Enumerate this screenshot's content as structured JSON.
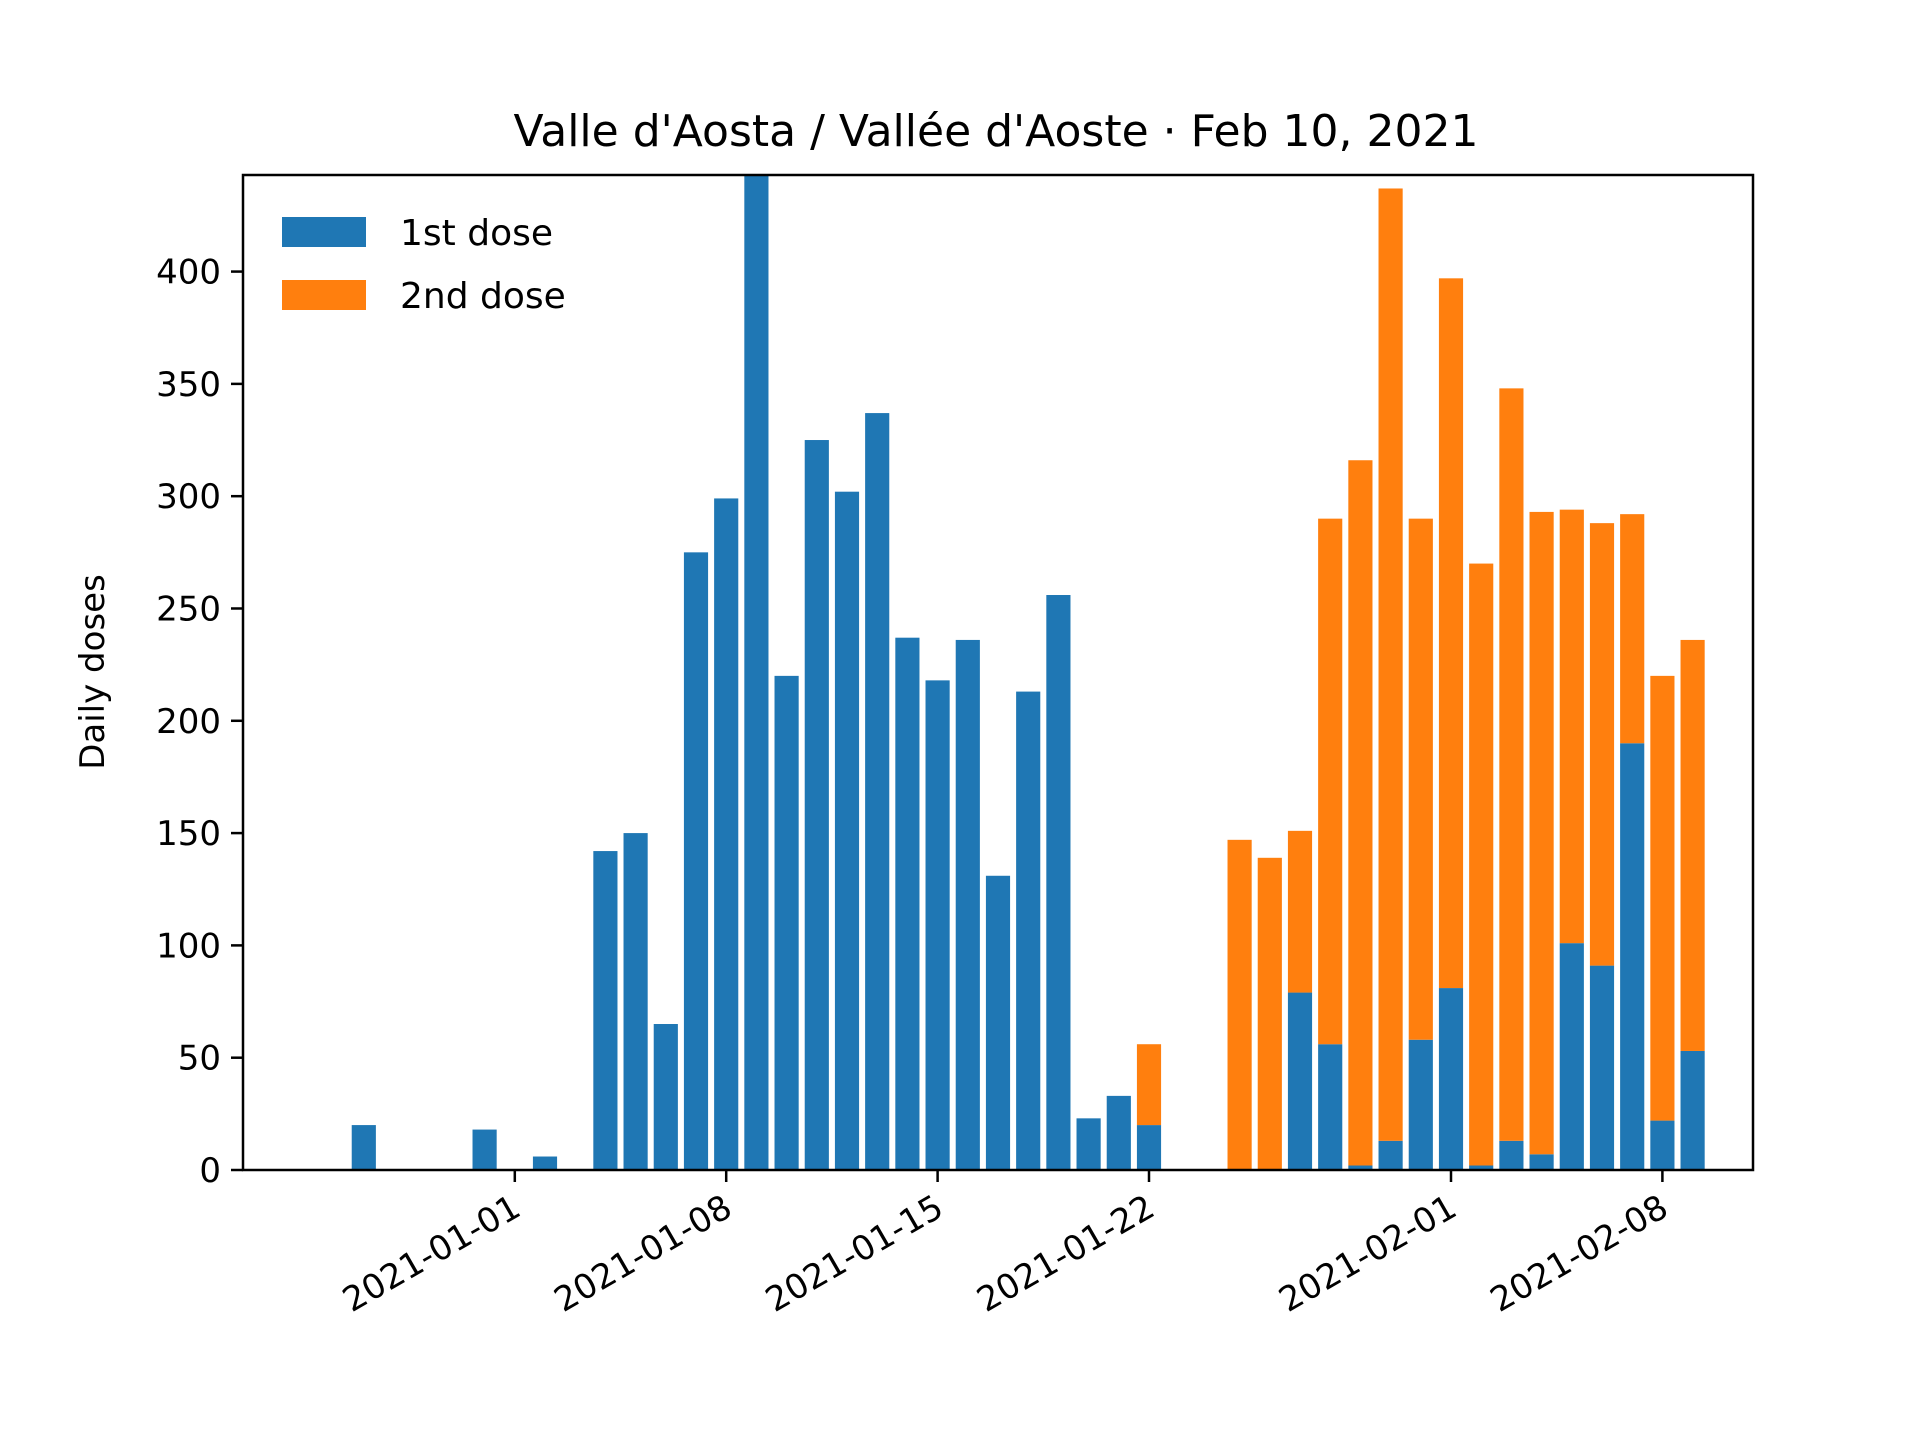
{
  "chart_data": {
    "type": "bar",
    "stacked": true,
    "title": "Valle d'Aosta / Vallée d'Aoste · Feb 10, 2021",
    "xlabel": "",
    "ylabel": "Daily doses",
    "ylim": [
      0,
      443
    ],
    "yticks": [
      0,
      50,
      100,
      150,
      200,
      250,
      300,
      350,
      400
    ],
    "xlim": [
      "2020-12-23",
      "2021-02-11"
    ],
    "xticks": [
      "2021-01-01",
      "2021-01-08",
      "2021-01-15",
      "2021-01-22",
      "2021-02-01",
      "2021-02-08"
    ],
    "grid": false,
    "legend_position": "top-left",
    "x": [
      "2020-12-27",
      "2020-12-28",
      "2020-12-29",
      "2020-12-30",
      "2020-12-31",
      "2021-01-01",
      "2021-01-02",
      "2021-01-03",
      "2021-01-04",
      "2021-01-05",
      "2021-01-06",
      "2021-01-07",
      "2021-01-08",
      "2021-01-09",
      "2021-01-10",
      "2021-01-11",
      "2021-01-12",
      "2021-01-13",
      "2021-01-14",
      "2021-01-15",
      "2021-01-16",
      "2021-01-17",
      "2021-01-18",
      "2021-01-19",
      "2021-01-20",
      "2021-01-21",
      "2021-01-22",
      "2021-01-23",
      "2021-01-24",
      "2021-01-25",
      "2021-01-26",
      "2021-01-27",
      "2021-01-28",
      "2021-01-29",
      "2021-01-30",
      "2021-01-31",
      "2021-02-01",
      "2021-02-02",
      "2021-02-03",
      "2021-02-04",
      "2021-02-05",
      "2021-02-06",
      "2021-02-07",
      "2021-02-08",
      "2021-02-09",
      "2021-02-10"
    ],
    "series": [
      {
        "name": "1st dose",
        "color": "#1f77b4",
        "values": [
          20,
          0,
          0,
          0,
          18,
          0,
          6,
          0,
          142,
          150,
          65,
          275,
          299,
          443,
          220,
          325,
          302,
          337,
          237,
          218,
          236,
          131,
          213,
          256,
          23,
          33,
          20,
          0,
          0,
          0,
          0,
          79,
          56,
          2,
          13,
          58,
          81,
          2,
          13,
          7,
          101,
          91,
          190,
          22,
          53,
          0
        ]
      },
      {
        "name": "2nd dose",
        "color": "#ff7f0e",
        "values": [
          0,
          0,
          0,
          0,
          0,
          0,
          0,
          0,
          0,
          0,
          0,
          0,
          0,
          0,
          0,
          0,
          0,
          0,
          0,
          0,
          0,
          0,
          0,
          0,
          0,
          0,
          36,
          0,
          0,
          147,
          139,
          72,
          234,
          314,
          424,
          232,
          316,
          268,
          335,
          286,
          193,
          197,
          102,
          198,
          183,
          0
        ]
      }
    ]
  }
}
